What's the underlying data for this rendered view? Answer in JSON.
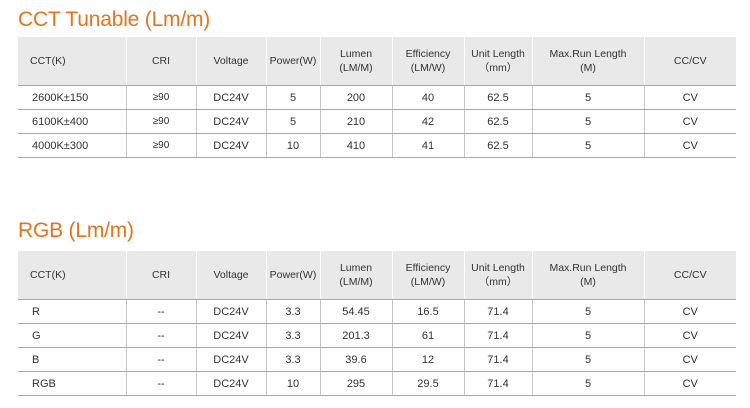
{
  "sections": [
    {
      "title": "CCT Tunable (Lm/m)",
      "headers": [
        "CCT(K)",
        "CRI",
        "Voltage",
        "Power(W)",
        "Lumen\n(LM/M)",
        "Efficiency\n(LM/W)",
        "Unit Length\n（mm）",
        "Max.Run Length\n(M)",
        "CC/CV"
      ],
      "rows": [
        [
          "2600K±150",
          "≥90",
          "DC24V",
          "5",
          "200",
          "40",
          "62.5",
          "5",
          "CV"
        ],
        [
          "6100K±400",
          "≥90",
          "DC24V",
          "5",
          "210",
          "42",
          "62.5",
          "5",
          "CV"
        ],
        [
          "4000K±300",
          "≥90",
          "DC24V",
          "10",
          "410",
          "41",
          "62.5",
          "5",
          "CV"
        ]
      ]
    },
    {
      "title": "RGB (Lm/m)",
      "headers": [
        "CCT(K)",
        "CRI",
        "Voltage",
        "Power(W)",
        "Lumen\n(LM/M)",
        "Efficiency\n(LM/W)",
        "Unit Length\n（mm）",
        "Max.Run Length\n(M)",
        "CC/CV"
      ],
      "rows": [
        [
          "R",
          "--",
          "DC24V",
          "3.3",
          "54.45",
          "16.5",
          "71.4",
          "5",
          "CV"
        ],
        [
          "G",
          "--",
          "DC24V",
          "3.3",
          "201.3",
          "61",
          "71.4",
          "5",
          "CV"
        ],
        [
          "B",
          "--",
          "DC24V",
          "3.3",
          "39.6",
          "12",
          "71.4",
          "5",
          "CV"
        ],
        [
          "RGB",
          "--",
          "DC24V",
          "10",
          "295",
          "29.5",
          "71.4",
          "5",
          "CV"
        ]
      ]
    }
  ],
  "colors": {
    "title": "#e8731a",
    "header_bg": "#e9e9e9",
    "rule": "#a9a9a9"
  }
}
